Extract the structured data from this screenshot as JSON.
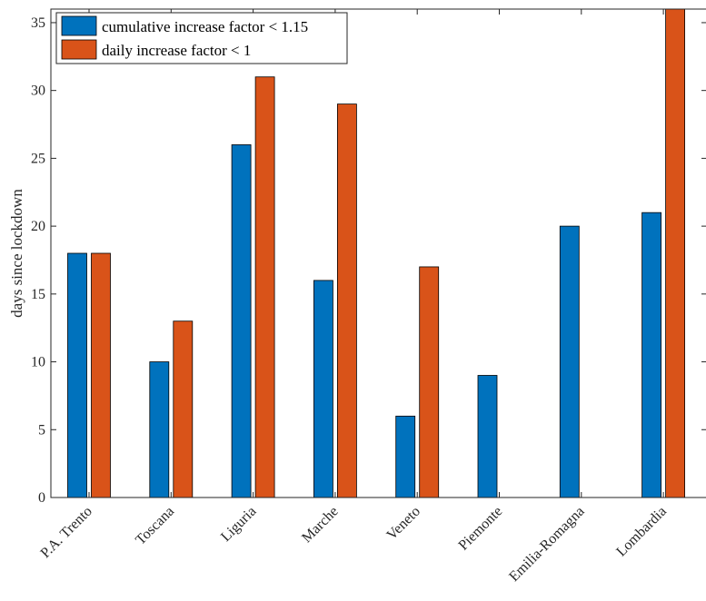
{
  "chart_data": {
    "type": "bar",
    "title": "",
    "xlabel": "",
    "ylabel": "days since lockdown",
    "ylim": [
      0,
      36
    ],
    "yticks": [
      0,
      5,
      10,
      15,
      20,
      25,
      30,
      35
    ],
    "categories": [
      "P.A. Trento",
      "Toscana",
      "Liguria",
      "Marche",
      "Veneto",
      "Piemonte",
      "Emilia-Romagna",
      "Lombardia"
    ],
    "series": [
      {
        "name": "cumulative increase factor < 1.15",
        "color": "#0072BD",
        "values": [
          18,
          10,
          26,
          16,
          6,
          9,
          20,
          21
        ]
      },
      {
        "name": "daily increase factor < 1",
        "color": "#D95319",
        "values": [
          18,
          13,
          31,
          29,
          17,
          null,
          null,
          36
        ]
      }
    ],
    "legend_position": "top-left",
    "grid": false
  }
}
